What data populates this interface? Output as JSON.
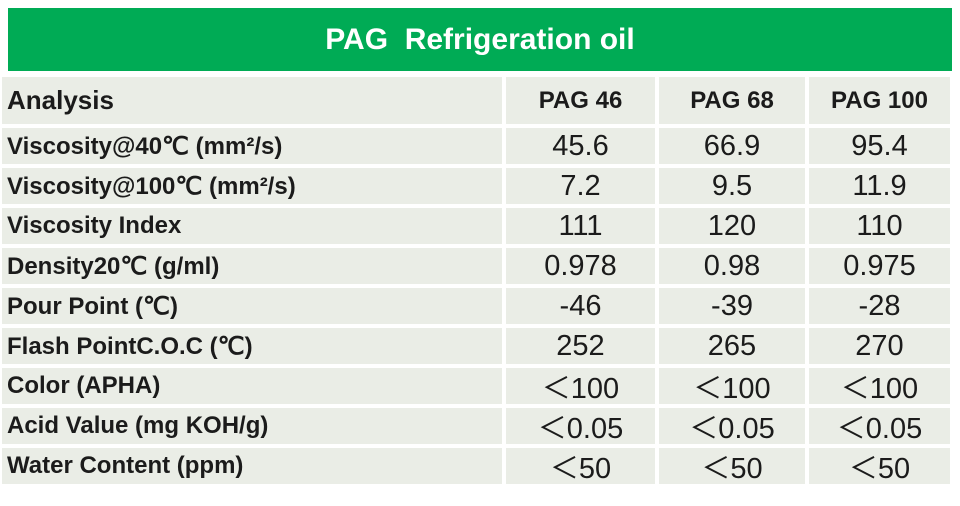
{
  "title": "PAG  Refrigeration oil",
  "colors": {
    "banner_green": "#00ab55",
    "row_background": "#eaede6",
    "title_text": "#ffffff",
    "body_text": "#1b1b1b",
    "separator": "#ffffff"
  },
  "table": {
    "columns": [
      "Analysis",
      "PAG 46",
      "PAG 68",
      "PAG 100"
    ],
    "rows": [
      {
        "label": "Viscosity@40℃ (mm²/s)",
        "values": [
          "45.6",
          "66.9",
          "95.4"
        ]
      },
      {
        "label": "Viscosity@100℃ (mm²/s)",
        "values": [
          "7.2",
          "9.5",
          "11.9"
        ]
      },
      {
        "label": "Viscosity Index",
        "values": [
          "111",
          "120",
          "110"
        ]
      },
      {
        "label": "Density20℃ (g/ml)",
        "values": [
          "0.978",
          "0.98",
          "0.975"
        ]
      },
      {
        "label": "Pour Point (℃)",
        "values": [
          "-46",
          "-39",
          "-28"
        ]
      },
      {
        "label": "Flash PointC.O.C (℃)",
        "values": [
          "252",
          "265",
          "270"
        ]
      },
      {
        "label": "Color (APHA)",
        "values": [
          "＜100",
          "＜100",
          "＜100"
        ]
      },
      {
        "label": "Acid Value (mg KOH/g)",
        "values": [
          "＜0.05",
          "＜0.05",
          "＜0.05"
        ]
      },
      {
        "label": "Water Content (ppm)",
        "values": [
          "＜50",
          "＜50",
          "＜50"
        ]
      }
    ]
  }
}
